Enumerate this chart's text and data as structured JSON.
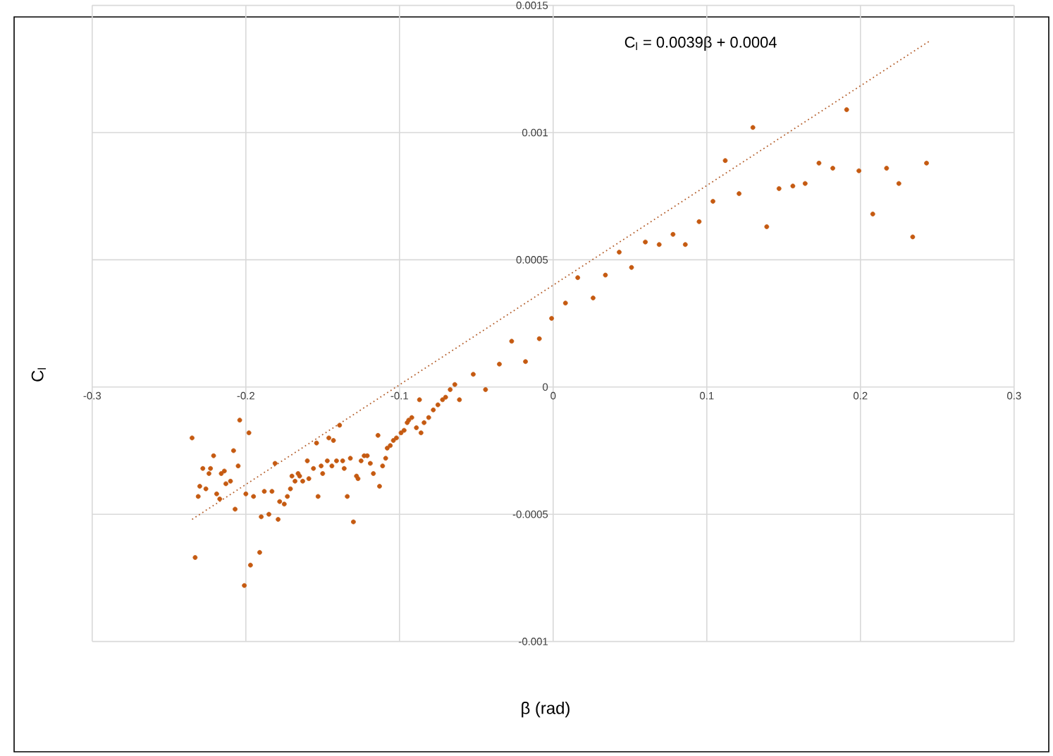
{
  "chart_data": {
    "type": "scatter",
    "xlabel": "β (rad)",
    "ylabel": "C$_{l}$",
    "annotations": [
      "C$_{l}$ = 0.0039β + 0.0004"
    ],
    "xlim": [
      -0.3,
      0.3
    ],
    "ylim": [
      -0.001,
      0.0015
    ],
    "xticks": [
      -0.3,
      -0.2,
      -0.1,
      0,
      0.1,
      0.2,
      0.3
    ],
    "yticks": [
      -0.001,
      -0.0005,
      0,
      0.0005,
      0.001,
      0.0015
    ],
    "grid": true,
    "series": [
      {
        "color": "#c55a11",
        "marker": "circle",
        "x": [
          -0.235,
          -0.231,
          -0.233,
          -0.23,
          -0.228,
          -0.226,
          -0.224,
          -0.223,
          -0.221,
          -0.219,
          -0.217,
          -0.216,
          -0.214,
          -0.213,
          -0.21,
          -0.208,
          -0.207,
          -0.205,
          -0.204,
          -0.201,
          -0.2,
          -0.198,
          -0.197,
          -0.195,
          -0.191,
          -0.19,
          -0.188,
          -0.185,
          -0.183,
          -0.181,
          -0.179,
          -0.178,
          -0.175,
          -0.173,
          -0.171,
          -0.17,
          -0.168,
          -0.166,
          -0.165,
          -0.163,
          -0.16,
          -0.159,
          -0.156,
          -0.154,
          -0.153,
          -0.151,
          -0.15,
          -0.147,
          -0.146,
          -0.144,
          -0.143,
          -0.141,
          -0.139,
          -0.137,
          -0.136,
          -0.134,
          -0.132,
          -0.13,
          -0.128,
          -0.127,
          -0.125,
          -0.123,
          -0.121,
          -0.119,
          -0.117,
          -0.114,
          -0.113,
          -0.111,
          -0.109,
          -0.108,
          -0.106,
          -0.104,
          -0.102,
          -0.099,
          -0.097,
          -0.095,
          -0.094,
          -0.092,
          -0.089,
          -0.087,
          -0.086,
          -0.084,
          -0.081,
          -0.078,
          -0.075,
          -0.072,
          -0.07,
          -0.067,
          -0.064,
          -0.061,
          -0.052,
          -0.044,
          -0.035,
          -0.027,
          -0.018,
          -0.009,
          -0.001,
          0.008,
          0.016,
          0.026,
          0.034,
          0.043,
          0.051,
          0.06,
          0.069,
          0.078,
          0.086,
          0.095,
          0.104,
          0.112,
          0.121,
          0.13,
          0.139,
          0.147,
          0.156,
          0.164,
          0.173,
          0.182,
          0.191,
          0.199,
          0.208,
          0.217,
          0.225,
          0.234,
          0.243
        ],
        "values": [
          -0.0002,
          -0.00043,
          -0.00067,
          -0.00039,
          -0.00032,
          -0.0004,
          -0.00034,
          -0.00032,
          -0.00027,
          -0.00042,
          -0.00044,
          -0.00034,
          -0.00033,
          -0.00038,
          -0.00037,
          -0.00025,
          -0.00048,
          -0.00031,
          -0.00013,
          -0.00078,
          -0.00042,
          -0.00018,
          -0.0007,
          -0.00043,
          -0.00065,
          -0.00051,
          -0.00041,
          -0.0005,
          -0.00041,
          -0.0003,
          -0.00052,
          -0.00045,
          -0.00046,
          -0.00043,
          -0.0004,
          -0.00035,
          -0.00037,
          -0.00034,
          -0.00035,
          -0.00037,
          -0.00029,
          -0.00036,
          -0.00032,
          -0.00022,
          -0.00043,
          -0.00031,
          -0.00034,
          -0.00029,
          -0.0002,
          -0.00031,
          -0.00021,
          -0.00029,
          -0.00015,
          -0.00029,
          -0.00032,
          -0.00043,
          -0.00028,
          -0.00053,
          -0.00035,
          -0.00036,
          -0.00029,
          -0.00027,
          -0.00027,
          -0.0003,
          -0.00034,
          -0.00019,
          -0.00039,
          -0.00031,
          -0.00028,
          -0.00024,
          -0.00023,
          -0.00021,
          -0.0002,
          -0.00018,
          -0.00017,
          -0.00014,
          -0.00013,
          -0.00012,
          -0.00016,
          -5e-05,
          -0.00018,
          -0.00014,
          -0.00012,
          -9e-05,
          -7e-05,
          -5e-05,
          -4e-05,
          -1e-05,
          1e-05,
          -5e-05,
          5e-05,
          -1e-05,
          9e-05,
          0.00018,
          0.0001,
          0.00019,
          0.00027,
          0.00033,
          0.00043,
          0.00035,
          0.00044,
          0.00053,
          0.00047,
          0.00057,
          0.00056,
          0.0006,
          0.00056,
          0.00065,
          0.00073,
          0.00089,
          0.00076,
          0.00102,
          0.00063,
          0.00078,
          0.00079,
          0.0008,
          0.00088,
          0.00086,
          0.00109,
          0.00085,
          0.00068,
          0.00086,
          0.0008,
          0.00059,
          0.00088
        ]
      },
      {
        "type": "line",
        "color": "#b5602e",
        "line_style": "dotted",
        "marker": "none",
        "x": [
          -0.235,
          0.245
        ],
        "values": [
          -0.00052,
          0.00136
        ]
      }
    ]
  }
}
